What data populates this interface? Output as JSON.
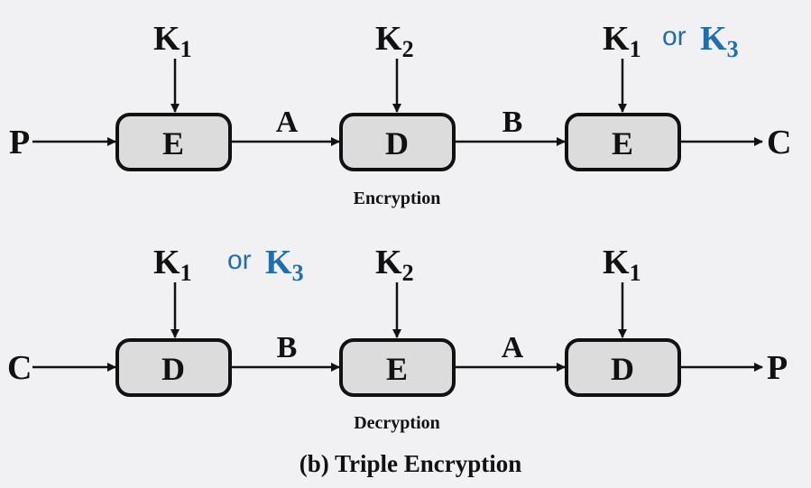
{
  "diagram": {
    "encryption": {
      "label": "Encryption",
      "input": "P",
      "output": "C",
      "boxes": [
        "E",
        "D",
        "E"
      ],
      "edges": [
        "A",
        "B"
      ],
      "keys": [
        {
          "main": "K",
          "sub": "1"
        },
        {
          "main": "K",
          "sub": "2"
        },
        {
          "main": "K",
          "sub": "1",
          "or": "or",
          "alt_main": "K",
          "alt_sub": "3"
        }
      ]
    },
    "decryption": {
      "label": "Decryption",
      "input": "C",
      "output": "P",
      "boxes": [
        "D",
        "E",
        "D"
      ],
      "edges": [
        "B",
        "A"
      ],
      "keys": [
        {
          "main": "K",
          "sub": "1",
          "or": "or",
          "alt_main": "K",
          "alt_sub": "3"
        },
        {
          "main": "K",
          "sub": "2"
        },
        {
          "main": "K",
          "sub": "1"
        }
      ]
    },
    "caption": "(b) Triple Encryption"
  }
}
